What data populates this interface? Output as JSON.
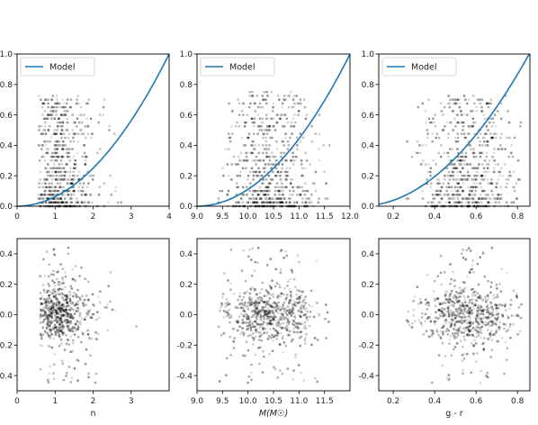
{
  "chart_data": [
    {
      "type": "scatter",
      "xlim": [
        0,
        4
      ],
      "ylim": [
        0,
        1.0
      ],
      "xticks": [
        "0",
        "1",
        "2",
        "3",
        "4"
      ],
      "yticks": [
        "0.0",
        "0.2",
        "0.4",
        "0.6",
        "0.8",
        "1.0"
      ],
      "xlabel": "",
      "legend": {
        "label": "Model",
        "placement": "upper-left"
      },
      "model_line": {
        "x0": 0,
        "x1": 4,
        "a": 0.0,
        "k": 0.0625,
        "p": 2,
        "color": "#1f77b4"
      },
      "points": {
        "x_center": 1.05,
        "x_spread": 0.35,
        "x_tail": 1.0,
        "y_min": 0.0,
        "y_max": 0.72,
        "clip_x": [
          0.55,
          3.9
        ]
      }
    },
    {
      "type": "scatter",
      "xlim": [
        9.0,
        12.0
      ],
      "ylim": [
        0,
        1.0
      ],
      "xticks": [
        "9.0",
        "9.5",
        "10.0",
        "10.5",
        "11.0",
        "11.5",
        "12.0"
      ],
      "yticks": [
        "0.0",
        "0.2",
        "0.4",
        "0.6",
        "0.8",
        "1.0"
      ],
      "xlabel": "",
      "legend": {
        "label": "Model",
        "placement": "upper-left"
      },
      "model_line": {
        "x0": 9.0,
        "x1": 12.0,
        "a": 9.0,
        "k": 0.111,
        "p": 2,
        "color": "#1f77b4"
      },
      "points": {
        "x_center": 10.4,
        "x_spread": 0.45,
        "x_tail": 0.2,
        "y_min": 0.0,
        "y_max": 0.75,
        "clip_x": [
          9.4,
          11.6
        ]
      }
    },
    {
      "type": "scatter",
      "xlim": [
        0.13,
        0.86
      ],
      "ylim": [
        0,
        1.0
      ],
      "xticks": [
        "0.2",
        "0.4",
        "0.6",
        "0.8"
      ],
      "yticks": [
        "0.0",
        "0.2",
        "0.4",
        "0.6",
        "0.8",
        "1.0"
      ],
      "xlabel": "",
      "legend": {
        "label": "Model",
        "placement": "upper-left"
      },
      "model_line": {
        "x0": 0.13,
        "x1": 0.86,
        "a": 0.04,
        "k": 1.5,
        "p": 2,
        "color": "#1f77b4"
      },
      "points": {
        "x_center": 0.55,
        "x_spread": 0.12,
        "x_tail": 0.1,
        "y_min": 0.0,
        "y_max": 0.72,
        "clip_x": [
          0.25,
          0.82
        ]
      }
    },
    {
      "type": "scatter",
      "xlim": [
        0,
        4
      ],
      "ylim": [
        -0.5,
        0.5
      ],
      "xticks": [
        "0",
        "1",
        "2",
        "3"
      ],
      "yticks": [
        "-0.4",
        "-0.2",
        "0.0",
        "0.2",
        "0.4"
      ],
      "xlabel": "n",
      "points": {
        "x_center": 1.0,
        "x_spread": 0.35,
        "x_tail": 1.0,
        "y_min": -0.45,
        "y_max": 0.45,
        "clip_x": [
          0.6,
          3.9
        ]
      }
    },
    {
      "type": "scatter",
      "xlim": [
        9.0,
        12.0
      ],
      "ylim": [
        -0.5,
        0.5
      ],
      "xticks": [
        "9.0",
        "9.5",
        "10.0",
        "10.5",
        "11.0",
        "11.5"
      ],
      "yticks": [
        "-0.4",
        "-0.2",
        "0.0",
        "0.2",
        "0.4"
      ],
      "xlabel": "M(M☉)",
      "points": {
        "x_center": 10.4,
        "x_spread": 0.45,
        "x_tail": 0.2,
        "y_min": -0.45,
        "y_max": 0.45,
        "clip_x": [
          9.4,
          11.6
        ]
      }
    },
    {
      "type": "scatter",
      "xlim": [
        0.13,
        0.86
      ],
      "ylim": [
        -0.5,
        0.5
      ],
      "xticks": [
        "0.2",
        "0.4",
        "0.6",
        "0.8"
      ],
      "yticks": [
        "-0.4",
        "-0.2",
        "0.0",
        "0.2",
        "0.4"
      ],
      "xlabel": "g - r",
      "points": {
        "x_center": 0.55,
        "x_spread": 0.12,
        "x_tail": 0.1,
        "y_min": -0.45,
        "y_max": 0.45,
        "clip_x": [
          0.25,
          0.82
        ]
      }
    }
  ]
}
